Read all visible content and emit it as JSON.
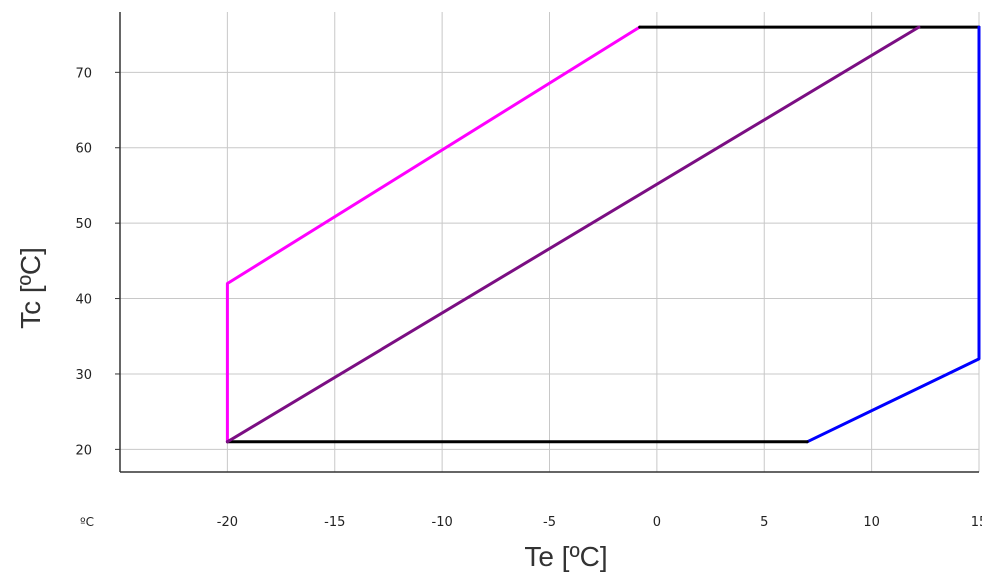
{
  "chart_data": {
    "type": "line",
    "title": "",
    "xlabel": "Te [ºC]",
    "ylabel": "Tc [ºC]",
    "x_unit_label": "ºC",
    "xlim": [
      -25,
      15
    ],
    "ylim": [
      17,
      78
    ],
    "grid": true,
    "x_ticks": [
      -20,
      -15,
      -10,
      -5,
      0,
      5,
      10,
      15
    ],
    "x_tick_labels": [
      "-20",
      "-15",
      "-10",
      "-5",
      "0",
      "5",
      "10",
      "15"
    ],
    "y_ticks": [
      20,
      30,
      40,
      50,
      60,
      70
    ],
    "y_tick_labels": [
      "20",
      "30",
      "40",
      "50",
      "60",
      "70"
    ],
    "series": [
      {
        "color": "#ff00ff",
        "points": [
          [
            -20,
            21
          ],
          [
            -20,
            42
          ],
          [
            -0.8,
            76
          ]
        ]
      },
      {
        "color": "#000000",
        "points": [
          [
            -0.8,
            76
          ],
          [
            15,
            76
          ]
        ]
      },
      {
        "color": "#0000ff",
        "points": [
          [
            15,
            76
          ],
          [
            15,
            32
          ],
          [
            7,
            21
          ]
        ]
      },
      {
        "color": "#000000",
        "points": [
          [
            7,
            21
          ],
          [
            -20,
            21
          ]
        ]
      },
      {
        "color": "#7b0e83",
        "points": [
          [
            -20,
            21
          ],
          [
            12.2,
            76
          ]
        ]
      }
    ]
  }
}
